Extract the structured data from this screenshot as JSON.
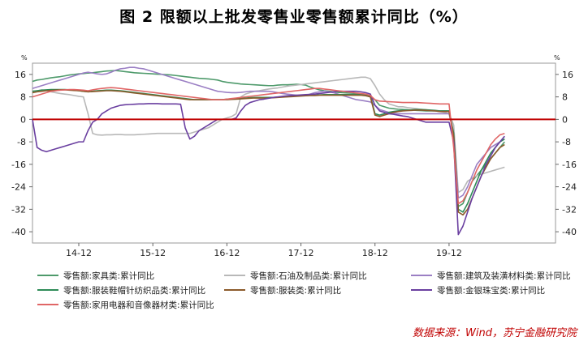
{
  "title": "图 2  限额以上批发零售业零售额累计同比（%）",
  "source": "数据来源：Wind，苏宁金融研究院",
  "chart_data": {
    "type": "line",
    "y_unit_left": "%",
    "y_unit_right": "%",
    "yticks": [
      16,
      8,
      0,
      -8,
      -16,
      -24,
      -32,
      -40
    ],
    "ylim": [
      -44,
      20
    ],
    "xlim": [
      0,
      113
    ],
    "xticks": [
      {
        "label": "14-12",
        "x": 10
      },
      {
        "label": "15-12",
        "x": 26
      },
      {
        "label": "16-12",
        "x": 42
      },
      {
        "label": "17-12",
        "x": 58
      },
      {
        "label": "18-12",
        "x": 74
      },
      {
        "label": "19-12",
        "x": 90
      }
    ],
    "zero_line_color": "#c00000",
    "series": [
      {
        "name": "零售额:家具类:累计同比",
        "color": "#4e9a6b",
        "values": [
          13.5,
          14,
          14.2,
          14.5,
          14.8,
          15,
          15.2,
          15.5,
          15.8,
          16,
          16.2,
          16.3,
          16.5,
          16.6,
          16.8,
          17,
          17.2,
          17.3,
          17.4,
          17.2,
          17,
          16.8,
          16.6,
          16.5,
          16.4,
          16.3,
          16.2,
          16.1,
          16,
          15.9,
          15.8,
          15.6,
          15.4,
          15.2,
          15,
          14.8,
          14.6,
          14.5,
          14.4,
          14.2,
          14,
          13.5,
          13.2,
          13,
          12.8,
          12.6,
          12.5,
          12.4,
          12.3,
          12.2,
          12.1,
          12,
          12,
          12.2,
          12.3,
          12.3,
          12.4,
          12.5,
          12.4,
          12.2,
          11.5,
          11,
          10.5,
          10.2,
          10,
          9.8,
          9.6,
          9.5,
          9.4,
          9.3,
          9.2,
          9,
          8.5,
          8,
          7,
          5,
          4.5,
          4,
          3.8,
          3.6,
          3.5,
          3.4,
          3.3,
          3.2,
          3.1,
          3,
          3,
          3,
          3,
          3,
          3,
          -6,
          -31,
          -30,
          -26,
          -22,
          -20,
          -18,
          -16,
          -14,
          -12,
          -10,
          -8
        ]
      },
      {
        "name": "零售额:石油及制品类:累计同比",
        "color": "#b8b8b8",
        "values": [
          10,
          10.2,
          10.5,
          10.3,
          9.8,
          9.5,
          9.2,
          9,
          8.8,
          8.5,
          8.2,
          8,
          2,
          -5,
          -5.5,
          -5.6,
          -5.5,
          -5.5,
          -5.4,
          -5.4,
          -5.5,
          -5.5,
          -5.5,
          -5.4,
          -5.3,
          -5.2,
          -5.1,
          -5,
          -5,
          -5,
          -5,
          -5,
          -5,
          -5,
          -5,
          -4.5,
          -4,
          -3.5,
          -3,
          -2,
          -1,
          0,
          0.5,
          1,
          2,
          8,
          9,
          9.5,
          10,
          10.2,
          10.5,
          10.8,
          11,
          11.2,
          11.5,
          11.8,
          12,
          12.2,
          12.4,
          12.6,
          12.8,
          13,
          13.2,
          13.4,
          13.6,
          13.8,
          14,
          14.2,
          14.4,
          14.6,
          14.8,
          15,
          15,
          14.5,
          12,
          9,
          7,
          5.5,
          5,
          4.5,
          4.5,
          4.2,
          4,
          3.8,
          3.5,
          3.4,
          3.2,
          3,
          2.8,
          2.5,
          2,
          -2,
          -26,
          -25,
          -22,
          -21,
          -20,
          -19.5,
          -19,
          -18.5,
          -18,
          -17.5,
          -17
        ]
      },
      {
        "name": "零售额:建筑及装潢材料类:累计同比",
        "color": "#9b7fc4",
        "values": [
          11,
          11.5,
          12,
          12.5,
          13,
          13.5,
          14,
          14.5,
          15,
          15.5,
          16,
          16.5,
          16.8,
          16.5,
          16.2,
          16,
          16.2,
          16.8,
          17.5,
          18,
          18.2,
          18.5,
          18.5,
          18.2,
          18,
          17.5,
          17,
          16.5,
          16,
          15.5,
          15,
          14.5,
          14,
          13.5,
          13,
          12.5,
          12,
          11.5,
          11,
          10.5,
          10,
          9.8,
          9.6,
          9.5,
          9.5,
          9.6,
          9.8,
          10,
          10,
          10,
          10,
          10,
          9.8,
          9.5,
          9.2,
          9,
          8.8,
          8.6,
          8.4,
          8.5,
          9,
          9.5,
          9.8,
          10,
          9.8,
          9.5,
          9,
          8.5,
          8,
          7.5,
          7,
          6.8,
          6.5,
          6.2,
          5,
          3.5,
          3,
          2.5,
          2.2,
          2,
          2,
          2,
          2,
          2,
          2,
          2,
          2,
          2,
          2,
          2,
          2,
          -5,
          -28,
          -27,
          -24,
          -20,
          -16,
          -14,
          -12,
          -10,
          -9,
          -8,
          -7
        ]
      },
      {
        "name": "零售额:服装鞋帽针纺织品类:累计同比",
        "color": "#2e8b57",
        "values": [
          10,
          10.2,
          10.4,
          10.5,
          10.6,
          10.6,
          10.6,
          10.6,
          10.5,
          10.4,
          10.2,
          10,
          9.8,
          10,
          10.2,
          10.3,
          10.4,
          10.4,
          10.3,
          10.2,
          10,
          9.8,
          9.6,
          9.4,
          9.2,
          9,
          8.8,
          8.6,
          8.4,
          8.2,
          8,
          7.8,
          7.6,
          7.4,
          7.2,
          7,
          7,
          7,
          7,
          7,
          7,
          7,
          7.2,
          7.3,
          7.4,
          7.5,
          7.6,
          7.7,
          7.8,
          7.8,
          7.8,
          7.8,
          7.8,
          7.9,
          8,
          8.1,
          8.2,
          8.3,
          8.4,
          8.5,
          8.6,
          8.6,
          8.7,
          8.8,
          8.8,
          8.8,
          8.8,
          8.8,
          8.8,
          8.8,
          8.8,
          8.8,
          8.6,
          8.4,
          2,
          1.5,
          2,
          2.5,
          2.8,
          3,
          3.2,
          3.3,
          3.4,
          3.5,
          3.5,
          3.4,
          3.3,
          3.2,
          3,
          3,
          3,
          -5,
          -32,
          -33,
          -30,
          -26,
          -22,
          -18,
          -15,
          -12,
          -10,
          -8,
          -7
        ]
      },
      {
        "name": "零售额:服装类:累计同比",
        "color": "#8b5a2b",
        "values": [
          9.5,
          9.8,
          10,
          10.2,
          10.3,
          10.4,
          10.5,
          10.5,
          10.4,
          10.3,
          10.2,
          10,
          9.8,
          9.9,
          10,
          10.1,
          10.2,
          10.2,
          10.1,
          10,
          9.8,
          9.6,
          9.4,
          9.2,
          9,
          8.8,
          8.6,
          8.4,
          8.2,
          8,
          7.8,
          7.6,
          7.4,
          7.2,
          7,
          7,
          7,
          7,
          7,
          7,
          7,
          7,
          7,
          7.1,
          7.2,
          7.3,
          7.4,
          7.5,
          7.6,
          7.6,
          7.6,
          7.6,
          7.7,
          7.8,
          7.9,
          8,
          8.1,
          8.2,
          8.3,
          8.4,
          8.5,
          8.5,
          8.6,
          8.6,
          8.6,
          8.6,
          8.6,
          8.6,
          8.6,
          8.6,
          8.6,
          8.6,
          8.4,
          8,
          1.5,
          1,
          1.5,
          2,
          2.5,
          2.8,
          3,
          3.1,
          3.2,
          3.3,
          3.3,
          3.2,
          3.1,
          3,
          2.8,
          2.8,
          2.8,
          -6,
          -33,
          -34,
          -32,
          -28,
          -24,
          -20,
          -17,
          -14,
          -12,
          -10,
          -9
        ]
      },
      {
        "name": "零售额:金银珠宝类:累计同比",
        "color": "#6a3fa0",
        "values": [
          0,
          -10,
          -11,
          -11.5,
          -11,
          -10.5,
          -10,
          -9.5,
          -9,
          -8.5,
          -8,
          -8,
          -4,
          -1,
          0,
          2,
          3,
          4,
          4.5,
          5,
          5.2,
          5.3,
          5.4,
          5.5,
          5.5,
          5.6,
          5.6,
          5.6,
          5.5,
          5.5,
          5.5,
          5.5,
          5.4,
          -3,
          -7,
          -6,
          -4,
          -3,
          -2,
          -1,
          0,
          0,
          0,
          0,
          0.5,
          3,
          5,
          6,
          6.5,
          7,
          7.2,
          7.5,
          7.8,
          8,
          8.2,
          8.4,
          8.5,
          8.6,
          8.7,
          8.8,
          8.9,
          9,
          9.2,
          9.4,
          9.6,
          9.8,
          10,
          10,
          10,
          10,
          10,
          9.8,
          9.5,
          9,
          5,
          3,
          2.5,
          2,
          1.8,
          1.5,
          1.2,
          1,
          0.5,
          0,
          -0.5,
          -1,
          -1,
          -1,
          -1,
          -1,
          -1,
          -8,
          -41,
          -38,
          -33,
          -28,
          -24,
          -20,
          -16,
          -13,
          -10,
          -8,
          -6
        ]
      },
      {
        "name": "零售额:家用电器和音像器材类:累计同比",
        "color": "#e06666",
        "values": [
          8,
          8.5,
          9,
          9.5,
          10,
          10.2,
          10.4,
          10.5,
          10.6,
          10.6,
          10.5,
          10.4,
          10.2,
          10.5,
          10.8,
          11,
          11.2,
          11.3,
          11.2,
          11,
          10.8,
          10.6,
          10.4,
          10.2,
          10,
          9.8,
          9.6,
          9.4,
          9.2,
          9,
          8.8,
          8.6,
          8.4,
          8.2,
          8,
          7.8,
          7.6,
          7.4,
          7.2,
          7,
          7,
          7,
          7.2,
          7.4,
          7.6,
          7.8,
          8,
          8.2,
          8.4,
          8.6,
          8.8,
          9,
          9.2,
          9.4,
          9.6,
          9.8,
          10,
          10.2,
          10.4,
          10.6,
          10.8,
          11,
          11,
          10.8,
          10.6,
          10.4,
          10.2,
          10,
          9.8,
          9.6,
          9.4,
          9.2,
          9,
          8.5,
          7,
          6.5,
          6.4,
          6.3,
          6.2,
          6.1,
          6,
          6,
          6,
          6,
          5.9,
          5.8,
          5.7,
          5.6,
          5.5,
          5.5,
          5.5,
          -10,
          -30,
          -29,
          -26,
          -22,
          -18,
          -15,
          -12,
          -9,
          -7,
          -5.5,
          -5
        ]
      }
    ]
  }
}
